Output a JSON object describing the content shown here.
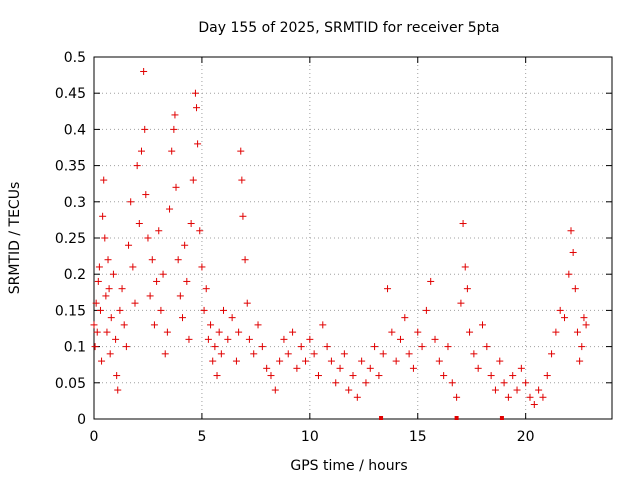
{
  "chart_data": {
    "type": "scatter",
    "title": "Day 155 of 2025, SRMTID for receiver 5pta",
    "xlabel": "GPS time / hours",
    "ylabel": "SRMTID / TECUs",
    "xlim": [
      0,
      24
    ],
    "ylim": [
      0,
      0.5
    ],
    "xticks": [
      0,
      5,
      10,
      15,
      20
    ],
    "xtick_labels": [
      "0",
      "5",
      "10",
      "15",
      "20"
    ],
    "yticks": [
      0,
      0.05,
      0.1,
      0.15,
      0.2,
      0.25,
      0.3,
      0.35,
      0.4,
      0.45,
      0.5
    ],
    "ytick_labels": [
      "0",
      "0.05",
      "0.1",
      "0.15",
      "0.2",
      "0.25",
      "0.3",
      "0.35",
      "0.4",
      "0.45",
      "0.5"
    ],
    "grid": true,
    "marker": "+",
    "color": "#e00000",
    "series": [
      {
        "name": "SRMTID",
        "points": [
          [
            0.0,
            0.13
          ],
          [
            0.05,
            0.1
          ],
          [
            0.1,
            0.16
          ],
          [
            0.15,
            0.12
          ],
          [
            0.2,
            0.19
          ],
          [
            0.25,
            0.21
          ],
          [
            0.3,
            0.15
          ],
          [
            0.35,
            0.08
          ],
          [
            0.4,
            0.28
          ],
          [
            0.45,
            0.33
          ],
          [
            0.5,
            0.25
          ],
          [
            0.55,
            0.17
          ],
          [
            0.6,
            0.12
          ],
          [
            0.65,
            0.22
          ],
          [
            0.7,
            0.18
          ],
          [
            0.75,
            0.09
          ],
          [
            0.8,
            0.14
          ],
          [
            0.9,
            0.2
          ],
          [
            1.0,
            0.11
          ],
          [
            1.05,
            0.06
          ],
          [
            1.1,
            0.04
          ],
          [
            1.2,
            0.15
          ],
          [
            1.3,
            0.18
          ],
          [
            1.4,
            0.13
          ],
          [
            1.5,
            0.1
          ],
          [
            1.6,
            0.24
          ],
          [
            1.7,
            0.3
          ],
          [
            1.8,
            0.21
          ],
          [
            1.9,
            0.16
          ],
          [
            2.0,
            0.35
          ],
          [
            2.1,
            0.27
          ],
          [
            2.2,
            0.37
          ],
          [
            2.3,
            0.48
          ],
          [
            2.35,
            0.4
          ],
          [
            2.4,
            0.31
          ],
          [
            2.5,
            0.25
          ],
          [
            2.6,
            0.17
          ],
          [
            2.7,
            0.22
          ],
          [
            2.8,
            0.13
          ],
          [
            2.9,
            0.19
          ],
          [
            3.0,
            0.26
          ],
          [
            3.1,
            0.15
          ],
          [
            3.2,
            0.2
          ],
          [
            3.3,
            0.09
          ],
          [
            3.4,
            0.12
          ],
          [
            3.5,
            0.29
          ],
          [
            3.6,
            0.37
          ],
          [
            3.7,
            0.4
          ],
          [
            3.75,
            0.42
          ],
          [
            3.8,
            0.32
          ],
          [
            3.9,
            0.22
          ],
          [
            4.0,
            0.17
          ],
          [
            4.1,
            0.14
          ],
          [
            4.2,
            0.24
          ],
          [
            4.3,
            0.19
          ],
          [
            4.4,
            0.11
          ],
          [
            4.5,
            0.27
          ],
          [
            4.6,
            0.33
          ],
          [
            4.7,
            0.45
          ],
          [
            4.75,
            0.43
          ],
          [
            4.8,
            0.38
          ],
          [
            4.9,
            0.26
          ],
          [
            5.0,
            0.21
          ],
          [
            5.1,
            0.15
          ],
          [
            5.2,
            0.18
          ],
          [
            5.3,
            0.11
          ],
          [
            5.4,
            0.13
          ],
          [
            5.5,
            0.08
          ],
          [
            5.6,
            0.1
          ],
          [
            5.7,
            0.06
          ],
          [
            5.8,
            0.12
          ],
          [
            5.9,
            0.09
          ],
          [
            6.0,
            0.15
          ],
          [
            6.2,
            0.11
          ],
          [
            6.4,
            0.14
          ],
          [
            6.6,
            0.08
          ],
          [
            6.7,
            0.12
          ],
          [
            6.8,
            0.37
          ],
          [
            6.85,
            0.33
          ],
          [
            6.9,
            0.28
          ],
          [
            7.0,
            0.22
          ],
          [
            7.1,
            0.16
          ],
          [
            7.2,
            0.11
          ],
          [
            7.4,
            0.09
          ],
          [
            7.6,
            0.13
          ],
          [
            7.8,
            0.1
          ],
          [
            8.0,
            0.07
          ],
          [
            8.2,
            0.06
          ],
          [
            8.4,
            0.04
          ],
          [
            8.6,
            0.08
          ],
          [
            8.8,
            0.11
          ],
          [
            9.0,
            0.09
          ],
          [
            9.2,
            0.12
          ],
          [
            9.4,
            0.07
          ],
          [
            9.6,
            0.1
          ],
          [
            9.8,
            0.08
          ],
          [
            10.0,
            0.11
          ],
          [
            10.2,
            0.09
          ],
          [
            10.4,
            0.06
          ],
          [
            10.6,
            0.13
          ],
          [
            10.8,
            0.1
          ],
          [
            11.0,
            0.08
          ],
          [
            11.2,
            0.05
          ],
          [
            11.4,
            0.07
          ],
          [
            11.6,
            0.09
          ],
          [
            11.8,
            0.04
          ],
          [
            12.0,
            0.06
          ],
          [
            12.2,
            0.03
          ],
          [
            12.4,
            0.08
          ],
          [
            12.6,
            0.05
          ],
          [
            12.8,
            0.07
          ],
          [
            13.0,
            0.1
          ],
          [
            13.2,
            0.06
          ],
          [
            13.4,
            0.09
          ],
          [
            13.6,
            0.18
          ],
          [
            13.8,
            0.12
          ],
          [
            14.0,
            0.08
          ],
          [
            14.2,
            0.11
          ],
          [
            14.4,
            0.14
          ],
          [
            14.6,
            0.09
          ],
          [
            14.8,
            0.07
          ],
          [
            15.0,
            0.12
          ],
          [
            15.2,
            0.1
          ],
          [
            15.4,
            0.15
          ],
          [
            15.6,
            0.19
          ],
          [
            15.8,
            0.11
          ],
          [
            16.0,
            0.08
          ],
          [
            16.2,
            0.06
          ],
          [
            16.4,
            0.1
          ],
          [
            16.6,
            0.05
          ],
          [
            16.8,
            0.03
          ],
          [
            17.0,
            0.16
          ],
          [
            17.1,
            0.27
          ],
          [
            17.2,
            0.21
          ],
          [
            17.3,
            0.18
          ],
          [
            17.4,
            0.12
          ],
          [
            17.6,
            0.09
          ],
          [
            17.8,
            0.07
          ],
          [
            18.0,
            0.13
          ],
          [
            18.2,
            0.1
          ],
          [
            18.4,
            0.06
          ],
          [
            18.6,
            0.04
          ],
          [
            18.8,
            0.08
          ],
          [
            19.0,
            0.05
          ],
          [
            19.2,
            0.03
          ],
          [
            19.4,
            0.06
          ],
          [
            19.6,
            0.04
          ],
          [
            19.8,
            0.07
          ],
          [
            20.0,
            0.05
          ],
          [
            20.2,
            0.03
          ],
          [
            20.4,
            0.02
          ],
          [
            20.6,
            0.04
          ],
          [
            20.8,
            0.03
          ],
          [
            21.0,
            0.06
          ],
          [
            21.2,
            0.09
          ],
          [
            21.4,
            0.12
          ],
          [
            21.6,
            0.15
          ],
          [
            21.8,
            0.14
          ],
          [
            22.0,
            0.2
          ],
          [
            22.1,
            0.26
          ],
          [
            22.2,
            0.23
          ],
          [
            22.3,
            0.18
          ],
          [
            22.4,
            0.12
          ],
          [
            22.5,
            0.08
          ],
          [
            22.6,
            0.1
          ],
          [
            22.7,
            0.14
          ],
          [
            22.8,
            0.13
          ]
        ]
      }
    ],
    "gap_markers_x": [
      13.3,
      16.8,
      18.9
    ]
  }
}
